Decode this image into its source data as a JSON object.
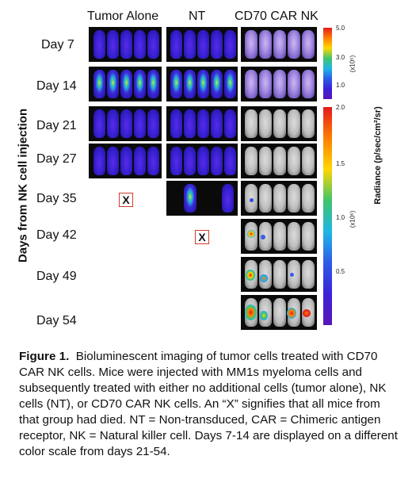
{
  "figure": {
    "column_headers": [
      "Tumor Alone",
      "NT",
      "CD70 CAR NK"
    ],
    "row_labels": [
      "Day 7",
      "Day 14",
      "Day 21",
      "Day 27",
      "Day 35",
      "Day 42",
      "Day 49",
      "Day 54"
    ],
    "y_axis_label": "Days from NK cell injection",
    "death_marker": "X",
    "colorbar_top": {
      "ticks": [
        "5.0",
        "3.0",
        "1.0"
      ],
      "multiplier": "(x10⁵)"
    },
    "colorbar_bottom": {
      "ticks": [
        "2.0",
        "1.5",
        "1.0",
        "0.5"
      ],
      "multiplier": "(x10⁶)"
    },
    "colorbar_title": "Radiance (p/sec/cm²/sr)",
    "colors": {
      "death_box_border": "#d53a2b",
      "panel_background": "#0a0a0a"
    }
  },
  "caption": {
    "label": "Figure 1.",
    "text": "Bioluminescent imaging of tumor cells treated with CD70 CAR NK cells.  Mice were injected with MM1s myeloma cells and subsequently treated with either no additional cells (tumor alone), NK cells (NT), or CD70 CAR NK cells. An “X” signifies that all mice from that group had died. NT = Non-transduced, CAR = Chimeric antigen receptor, NK = Natural killer cell. Days 7-14 are displayed on a different color scale from days 21-54."
  }
}
